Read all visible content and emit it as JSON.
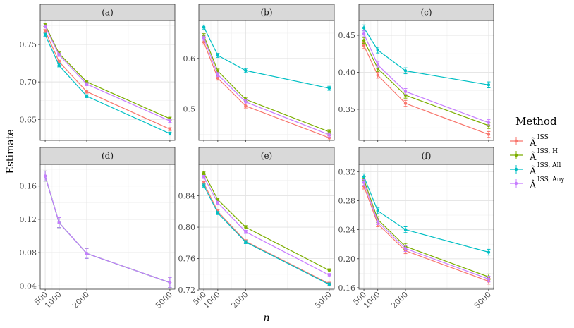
{
  "chart_data": {
    "type": "line",
    "x_title": "n",
    "y_title": "Estimate",
    "x_values": [
      500,
      1000,
      2000,
      5000
    ],
    "x_tick_labels": [
      "500",
      "1000",
      "2000",
      "5000"
    ],
    "legend": {
      "title": "Method",
      "placement": "right",
      "entries": [
        {
          "base": "Â",
          "sup": "ISS",
          "color": "#F8766D"
        },
        {
          "base": "Â",
          "sup": "ISS, H",
          "color": "#7CAE00"
        },
        {
          "base": "Â",
          "sup": "ISS, All",
          "color": "#00BFC4"
        },
        {
          "base": "Â",
          "sup": "ISS, Any",
          "color": "#C77CFF"
        }
      ]
    },
    "series_colors": [
      "#F8766D",
      "#7CAE00",
      "#00BFC4",
      "#C77CFF"
    ],
    "panels": [
      {
        "label": "(a)",
        "ylim": [
          0.622,
          0.782
        ],
        "y_ticks": [
          0.65,
          0.7,
          0.75
        ],
        "y_tick_labels": [
          "0.65",
          "0.70",
          "0.75"
        ],
        "series": [
          {
            "name": "ISS",
            "values": [
              0.768,
              0.727,
              0.687,
              0.637
            ],
            "err": 0.002
          },
          {
            "name": "ISS, H",
            "values": [
              0.776,
              0.738,
              0.7,
              0.651
            ],
            "err": 0.002
          },
          {
            "name": "ISS, All",
            "values": [
              0.763,
              0.722,
              0.681,
              0.631
            ],
            "err": 0.002
          },
          {
            "name": "ISS, Any",
            "values": [
              0.774,
              0.736,
              0.697,
              0.648
            ],
            "err": 0.002
          }
        ]
      },
      {
        "label": "(b)",
        "ylim": [
          0.438,
          0.675
        ],
        "y_ticks": [
          0.5,
          0.6
        ],
        "y_tick_labels": [
          "0.5",
          "0.6"
        ],
        "series": [
          {
            "name": "ISS",
            "values": [
              0.632,
              0.561,
              0.506,
              0.443
            ],
            "err": 0.004
          },
          {
            "name": "ISS, H",
            "values": [
              0.645,
              0.575,
              0.519,
              0.455
            ],
            "err": 0.004
          },
          {
            "name": "ISS, All",
            "values": [
              0.662,
              0.606,
              0.576,
              0.541
            ],
            "err": 0.004
          },
          {
            "name": "ISS, Any",
            "values": [
              0.64,
              0.568,
              0.514,
              0.449
            ],
            "err": 0.004
          }
        ]
      },
      {
        "label": "(c)",
        "ylim": [
          0.308,
          0.47
        ],
        "y_ticks": [
          0.35,
          0.4,
          0.45
        ],
        "y_tick_labels": [
          "0.35",
          "0.40",
          "0.45"
        ],
        "series": [
          {
            "name": "ISS",
            "values": [
              0.436,
              0.396,
              0.358,
              0.316
            ],
            "err": 0.004
          },
          {
            "name": "ISS, H",
            "values": [
              0.443,
              0.405,
              0.369,
              0.328
            ],
            "err": 0.004
          },
          {
            "name": "ISS, All",
            "values": [
              0.46,
              0.43,
              0.402,
              0.383
            ],
            "err": 0.004
          },
          {
            "name": "ISS, Any",
            "values": [
              0.452,
              0.41,
              0.374,
              0.332
            ],
            "err": 0.004
          }
        ]
      },
      {
        "label": "(d)",
        "ylim": [
          0.036,
          0.186
        ],
        "y_ticks": [
          0.04,
          0.08,
          0.12,
          0.16
        ],
        "y_tick_labels": [
          "0.04",
          "0.08",
          "0.12",
          "0.16"
        ],
        "series": [
          {
            "name": "ISS",
            "values": [
              0.172,
              0.116,
              0.079,
              0.044
            ],
            "err": 0.006
          },
          {
            "name": "ISS, H",
            "values": [
              0.172,
              0.116,
              0.079,
              0.044
            ],
            "err": 0.006
          },
          {
            "name": "ISS, All",
            "values": [
              0.172,
              0.116,
              0.079,
              0.044
            ],
            "err": 0.006
          },
          {
            "name": "ISS, Any",
            "values": [
              0.172,
              0.116,
              0.079,
              0.044
            ],
            "err": 0.006
          }
        ]
      },
      {
        "label": "(e)",
        "ylim": [
          0.721,
          0.88
        ],
        "y_ticks": [
          0.72,
          0.76,
          0.8,
          0.84
        ],
        "y_tick_labels": [
          "0.72",
          "0.76",
          "0.80",
          "0.84"
        ],
        "series": [
          {
            "name": "ISS",
            "values": [
              0.856,
              0.82,
              0.782,
              0.728
            ],
            "err": 0.002
          },
          {
            "name": "ISS, H",
            "values": [
              0.869,
              0.835,
              0.8,
              0.745
            ],
            "err": 0.002
          },
          {
            "name": "ISS, All",
            "values": [
              0.853,
              0.818,
              0.781,
              0.727
            ],
            "err": 0.002
          },
          {
            "name": "ISS, Any",
            "values": [
              0.864,
              0.831,
              0.794,
              0.739
            ],
            "err": 0.002
          }
        ]
      },
      {
        "label": "(f)",
        "ylim": [
          0.158,
          0.33
        ],
        "y_ticks": [
          0.16,
          0.2,
          0.24,
          0.28,
          0.32
        ],
        "y_tick_labels": [
          "0.16",
          "0.20",
          "0.24",
          "0.28",
          "0.32"
        ],
        "series": [
          {
            "name": "ISS",
            "values": [
              0.3,
              0.248,
              0.211,
              0.169
            ],
            "err": 0.004
          },
          {
            "name": "ISS, H",
            "values": [
              0.309,
              0.254,
              0.217,
              0.175
            ],
            "err": 0.004
          },
          {
            "name": "ISS, All",
            "values": [
              0.313,
              0.266,
              0.24,
              0.209
            ],
            "err": 0.004
          },
          {
            "name": "ISS, Any",
            "values": [
              0.305,
              0.251,
              0.214,
              0.172
            ],
            "err": 0.004
          }
        ]
      }
    ]
  }
}
